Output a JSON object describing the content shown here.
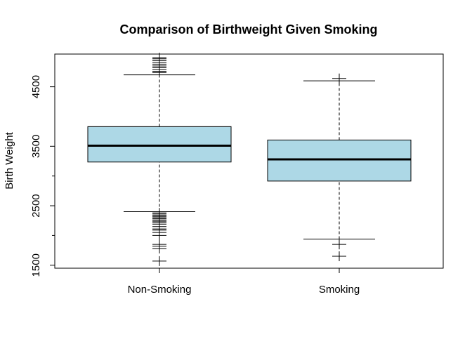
{
  "chart_data": {
    "type": "boxplot",
    "title": "Comparison of Birthweight Given Smoking",
    "ylabel": "Birth Weight",
    "ylim": [
      1450,
      5050
    ],
    "yticks": [
      1500,
      2500,
      3500,
      4500
    ],
    "yticks_labels": [
      "1500",
      "2500",
      "3500",
      "4500"
    ],
    "categories": [
      "Non-Smoking",
      "Smoking"
    ],
    "colors": {
      "box_fill": "#ADD8E6",
      "stroke": "#000000",
      "background": "#FFFFFF"
    },
    "series": [
      {
        "category": "Non-Smoking",
        "lower_whisker": 2400,
        "q1": 3235,
        "median": 3510,
        "q3": 3830,
        "upper_whisker": 4700,
        "outliers": [
          1570,
          1780,
          1820,
          1850,
          2000,
          2050,
          2090,
          2110,
          2150,
          2190,
          2220,
          2240,
          2260,
          2280,
          2300,
          2320,
          2340,
          2360,
          2380,
          4740,
          4760,
          4790,
          4820,
          4850,
          4880,
          4910,
          4940,
          4970,
          4990
        ]
      },
      {
        "category": "Smoking",
        "lower_whisker": 1940,
        "q1": 2915,
        "median": 3280,
        "q3": 3605,
        "upper_whisker": 4600,
        "outliers": [
          1650,
          1850,
          4640
        ]
      }
    ]
  }
}
